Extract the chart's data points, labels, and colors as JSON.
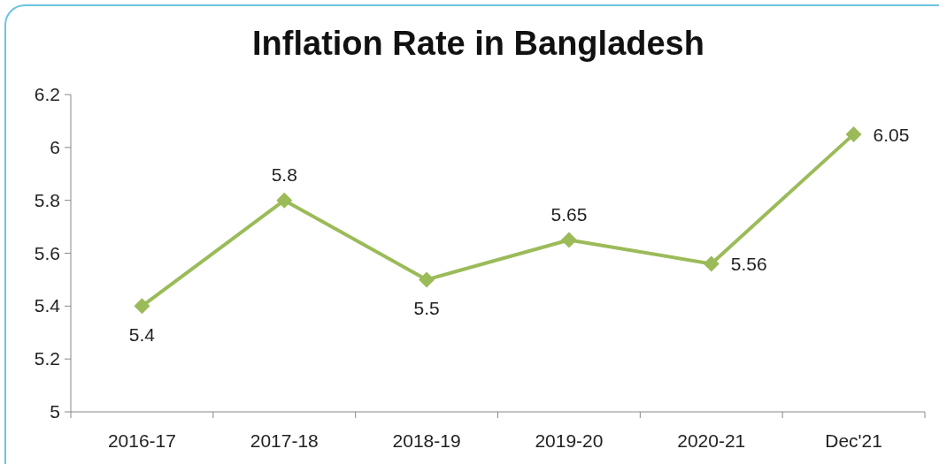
{
  "chart_data": {
    "type": "line",
    "title": "Inflation Rate in Bangladesh",
    "categories": [
      "2016-17",
      "2017-18",
      "2018-19",
      "2019-20",
      "2020-21",
      "Dec'21"
    ],
    "series": [
      {
        "color": "#9bbb59",
        "values": [
          5.4,
          5.8,
          5.5,
          5.65,
          5.56,
          6.05
        ]
      }
    ],
    "ylim": [
      5,
      6.2
    ],
    "yticks": [
      5,
      5.2,
      5.4,
      5.6,
      5.8,
      6,
      6.2
    ],
    "marker": "diamond",
    "line_style": "solid",
    "data_labels": true
  }
}
